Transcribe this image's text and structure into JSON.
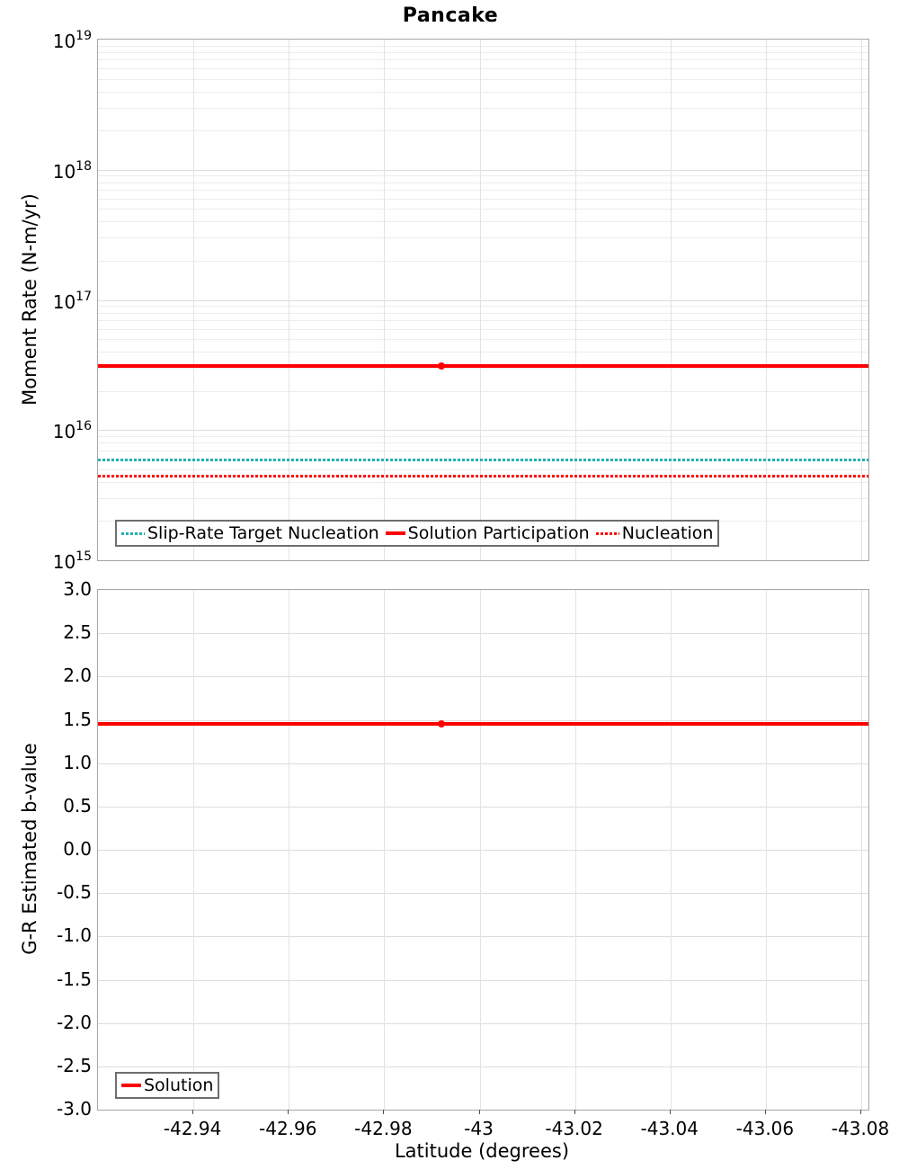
{
  "chart_data": [
    {
      "type": "line",
      "title": "Pancake",
      "ylabel": "Moment Rate (N-m/yr)",
      "yscale": "log",
      "ylim": [
        1000000000000000.0,
        1e+19
      ],
      "y_tick_exponents": [
        19,
        18,
        17,
        16,
        15
      ],
      "xlim": [
        -42.92,
        -43.0815
      ],
      "x_ticks": [
        -42.94,
        -42.96,
        -42.98,
        -43,
        -43.02,
        -43.04,
        -43.06,
        -43.08
      ],
      "grid": true,
      "legend_position": "inside-bottom-left",
      "series": [
        {
          "name": "Slip-Rate Target Nucleation",
          "style": "dotted",
          "color": "#21b2b2",
          "value": 5900000000000000.0,
          "marker_x": null
        },
        {
          "name": "Solution Participation",
          "style": "solid",
          "color": "#fe0000",
          "value": 3.1e+16,
          "marker_x": -42.992
        },
        {
          "name": "Nucleation",
          "style": "dotted",
          "color": "#fe0000",
          "value": 4400000000000000.0,
          "marker_x": null
        }
      ]
    },
    {
      "type": "line",
      "ylabel": "G-R Estimated b-value",
      "xlabel": "Latitude (degrees)",
      "ylim": [
        -3.0,
        3.0
      ],
      "y_ticks": [
        3.0,
        2.5,
        2.0,
        1.5,
        1.0,
        0.5,
        0.0,
        -0.5,
        -1.0,
        -1.5,
        -2.0,
        -2.5,
        -3.0
      ],
      "y_tick_labels": [
        "3.0",
        "2.5",
        "2.0",
        "1.5",
        "1.0",
        "0.5",
        "0.0",
        "-0.5",
        "-1.0",
        "-1.5",
        "-2.0",
        "-2.5",
        "-3.0"
      ],
      "xlim": [
        -42.92,
        -43.0815
      ],
      "x_ticks": [
        -42.94,
        -42.96,
        -42.98,
        -43,
        -43.02,
        -43.04,
        -43.06,
        -43.08
      ],
      "x_tick_labels": [
        "-42.94",
        "-42.96",
        "-42.98",
        "-43",
        "-43.02",
        "-43.04",
        "-43.06",
        "-43.08"
      ],
      "grid": true,
      "legend_position": "inside-bottom-left",
      "series": [
        {
          "name": "Solution",
          "style": "solid",
          "color": "#fe0000",
          "value": 1.45,
          "marker_x": -42.992
        }
      ]
    }
  ],
  "colors": {
    "grid_major": "#dddddd",
    "grid_minor": "#ececec",
    "grid_vertical": "#e3e3e3",
    "plot_border": "#a6a6a6",
    "legend_border": "#6e6e6e",
    "text": "#000000"
  }
}
